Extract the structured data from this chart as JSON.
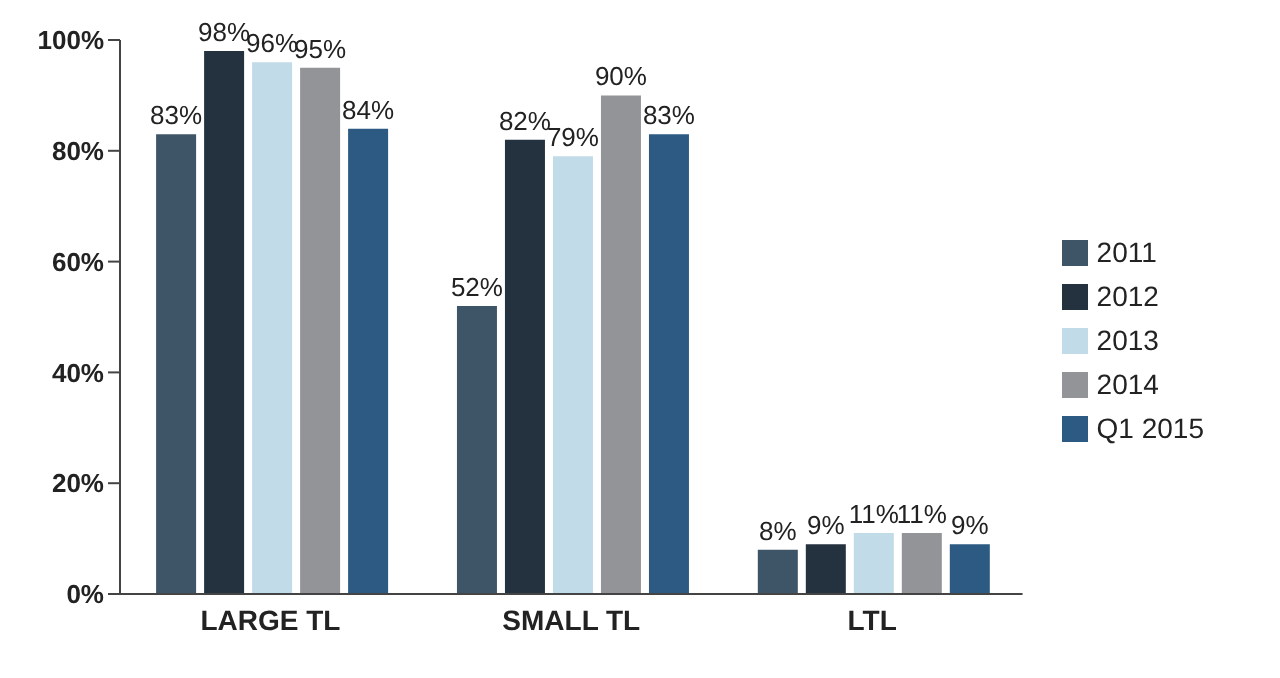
{
  "chart_data": {
    "type": "bar",
    "categories": [
      "LARGE TL",
      "SMALL TL",
      "LTL"
    ],
    "series": [
      {
        "name": "2011",
        "color": "#3e5467",
        "values": [
          83,
          52,
          8
        ],
        "value_labels": [
          "83%",
          "52%",
          "8%"
        ]
      },
      {
        "name": "2012",
        "color": "#24313f",
        "values": [
          98,
          82,
          9
        ],
        "value_labels": [
          "98%",
          "82%",
          "9%"
        ]
      },
      {
        "name": "2013",
        "color": "#c2dbe8",
        "values": [
          96,
          79,
          11
        ],
        "value_labels": [
          "96%",
          "79%",
          "11%"
        ]
      },
      {
        "name": "2014",
        "color": "#929497",
        "values": [
          95,
          90,
          11
        ],
        "value_labels": [
          "95%",
          "90%",
          "11%"
        ]
      },
      {
        "name": "Q1 2015",
        "color": "#2c5a83",
        "values": [
          84,
          83,
          9
        ],
        "value_labels": [
          "84%",
          "83%",
          "9%"
        ]
      }
    ],
    "ylim": [
      0,
      100
    ],
    "yticks": [
      {
        "value": 0,
        "label": "0%"
      },
      {
        "value": 20,
        "label": "20%"
      },
      {
        "value": 40,
        "label": "40%"
      },
      {
        "value": 60,
        "label": "60%"
      },
      {
        "value": 80,
        "label": "80%"
      },
      {
        "value": 100,
        "label": "100%"
      }
    ],
    "grid": false,
    "legend": "right"
  }
}
